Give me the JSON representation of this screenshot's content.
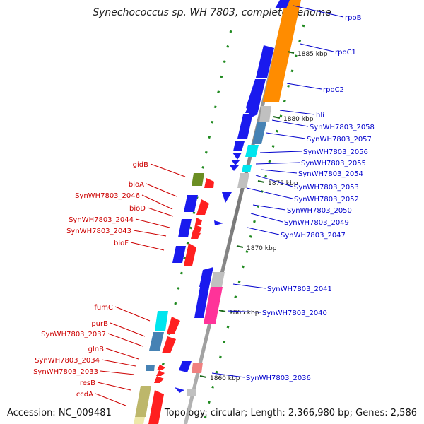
{
  "title": "Synechococcus sp. WH 7803, complete genome",
  "footer": {
    "accession": "Accession: NC_009481",
    "summary": "Topology: circular; Length: 2,366,980 bp; Genes: 2,586"
  },
  "ticks": [
    "1885 kbp",
    "1880 kbp",
    "1875 kbp",
    "1870 kbp",
    "1865 kbp",
    "1860 kbp"
  ],
  "right_labels": [
    "rpoB",
    "rpoC1",
    "rpoC2",
    "hli",
    "SynWH7803_2058",
    "SynWH7803_2057",
    "SynWH7803_2056",
    "SynWH7803_2055",
    "SynWH7803_2054",
    "SynWH7803_2053",
    "SynWH7803_2052",
    "SynWH7803_2050",
    "SynWH7803_2049",
    "SynWH7803_2047",
    "SynWH7803_2041",
    "SynWH7803_2040",
    "SynWH7803_2036"
  ],
  "left_labels": [
    "gidB",
    "bioA",
    "SynWH7803_2046",
    "bioD",
    "SynWH7803_2044",
    "SynWH7803_2043",
    "bioF",
    "fumC",
    "purB",
    "SynWH7803_2037",
    "glnB",
    "SynWH7803_2034",
    "SynWH7803_2033",
    "resB",
    "ccdA"
  ],
  "colors": {
    "forward_strand": "#ff2020",
    "reverse_strand": "#1a1aee",
    "forward_label": "#cc0000",
    "reverse_label": "#0000cc",
    "backbone": "#888888",
    "tick": "#228b22",
    "cog_orange": "#ff8c00",
    "cog_silver": "#c0c0c0",
    "cog_cyan": "#00e5ee",
    "cog_steelblue": "#4682b4",
    "cog_olive": "#6b8e23",
    "cog_pink": "#ff3399",
    "cog_khaki": "#bdb76b"
  }
}
